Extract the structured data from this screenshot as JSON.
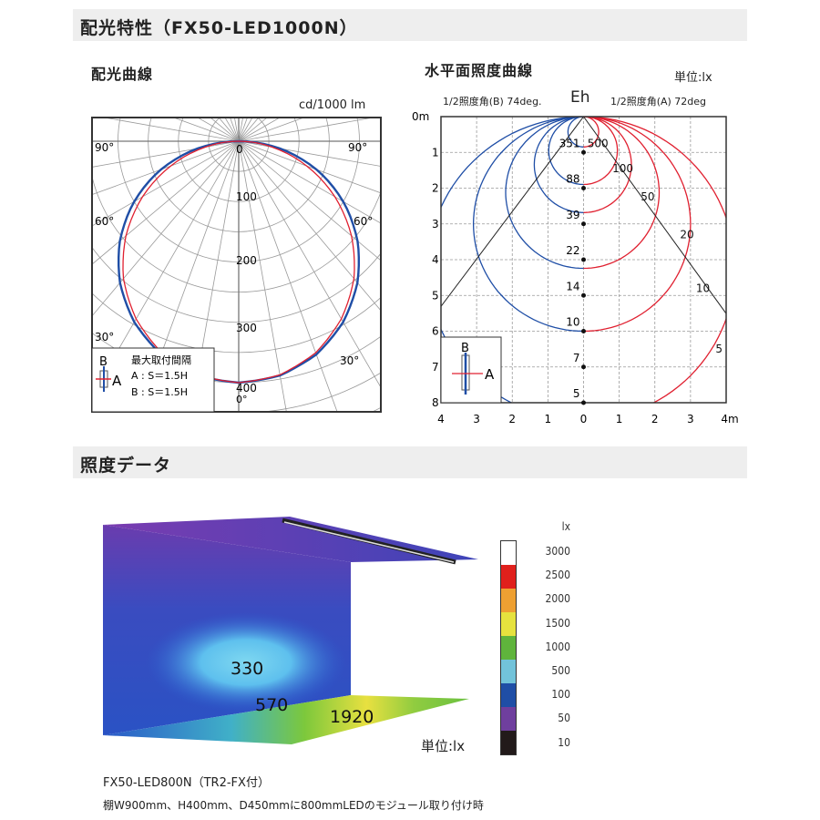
{
  "section1": {
    "title": "配光特性（FX50-LED1000N）"
  },
  "polar": {
    "heading": "配光曲線",
    "unit": "cd/1000 lm",
    "angle_labels": {
      "left90": "90°",
      "right90": "90°",
      "left60": "60°",
      "right60": "60°",
      "left30": "30°",
      "right30": "30°",
      "zero": "0°"
    },
    "radial_labels": [
      "0",
      "100",
      "200",
      "300",
      "400"
    ],
    "legend": {
      "b": "B",
      "a": "A",
      "title": "最大取付間隔",
      "line_a": "A : S＝1.5H",
      "line_b": "B : S＝1.5H"
    }
  },
  "isolux": {
    "heading": "水平面照度曲線",
    "unit": "単位:lx",
    "center_label": "Eh",
    "half_angle_b": "1/2照度角(B) 74deg.",
    "half_angle_a": "1/2照度角(A) 72deg",
    "y_labels": [
      "0m",
      "1",
      "2",
      "3",
      "4",
      "5",
      "6",
      "7",
      "8"
    ],
    "x_labels": [
      "4",
      "3",
      "2",
      "1",
      "0",
      "1",
      "2",
      "3",
      "4m"
    ],
    "point_values": [
      "351",
      "88",
      "39",
      "22",
      "14",
      "10",
      "7",
      "5"
    ],
    "contour_labels": [
      "500",
      "100",
      "50",
      "20",
      "10",
      "5"
    ],
    "legend": {
      "b": "B",
      "a": "A"
    }
  },
  "section2": {
    "title": "照度データ"
  },
  "render": {
    "values": [
      "330",
      "570",
      "1920"
    ],
    "unit": "単位:lx",
    "scale_unit": "lx",
    "scale": [
      {
        "label": "3000",
        "color": "#ffffff"
      },
      {
        "label": "2500",
        "color": "#e0201c"
      },
      {
        "label": "2000",
        "color": "#eea032"
      },
      {
        "label": "1500",
        "color": "#e6e23e"
      },
      {
        "label": "1000",
        "color": "#5fb43c"
      },
      {
        "label": "500",
        "color": "#72c3da"
      },
      {
        "label": "100",
        "color": "#1f4ea6"
      },
      {
        "label": "50",
        "color": "#6f3f9e"
      },
      {
        "label": "10",
        "color": "#221a1a"
      }
    ],
    "caption1": "FX50-LED800N（TR2-FX付）",
    "caption2": "棚W900mm、H400mm、D450mmに800mmLEDのモジュール取り付け時"
  },
  "chart_data": [
    {
      "type": "polar",
      "unit": "cd/1000 lm",
      "angles_deg": [
        0,
        10,
        20,
        30,
        40,
        50,
        60,
        70,
        80,
        90
      ],
      "series": [
        {
          "name": "A",
          "color": "#e02030",
          "values": [
            400,
            393,
            373,
            340,
            297,
            244,
            184,
            120,
            56,
            0
          ]
        },
        {
          "name": "B",
          "color": "#1f4ea6",
          "values": [
            400,
            394,
            376,
            346,
            306,
            257,
            200,
            137,
            69,
            0
          ]
        }
      ],
      "rlim": [
        0,
        400
      ]
    },
    {
      "type": "contour",
      "x_range_m": [
        -4,
        4
      ],
      "y_range_m": [
        0,
        8
      ],
      "grid": true,
      "contour_levels_lx": [
        500,
        100,
        50,
        20,
        10,
        5
      ],
      "axis_point_values": [
        {
          "y": 1,
          "lx": 351
        },
        {
          "y": 2,
          "lx": 88
        },
        {
          "y": 3,
          "lx": 39
        },
        {
          "y": 4,
          "lx": 22
        },
        {
          "y": 5,
          "lx": 14
        },
        {
          "y": 6,
          "lx": 10
        },
        {
          "y": 7,
          "lx": 7
        },
        {
          "y": 8,
          "lx": 5
        }
      ],
      "half_angle_deg": {
        "A": 72,
        "B": 74
      },
      "colors": {
        "A": "#e02030",
        "B": "#1f4ea6"
      }
    }
  ]
}
